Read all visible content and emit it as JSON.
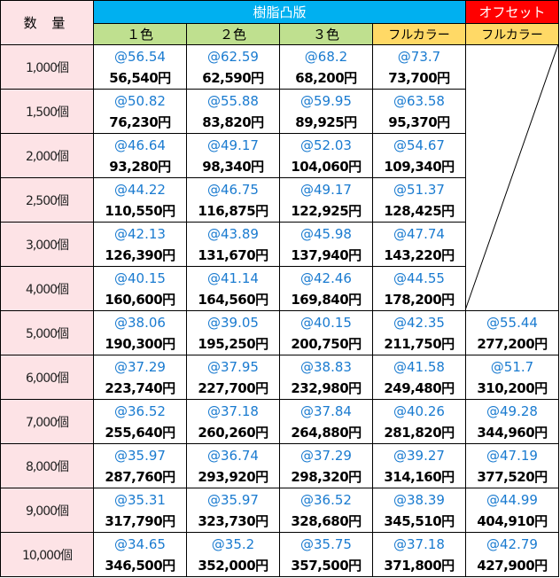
{
  "header": {
    "quantity_label": "数 量",
    "group_resin": "樹脂凸版",
    "group_offset": "オフセット",
    "columns": [
      "１色",
      "２色",
      "３色",
      "フルカラー",
      "フルカラー"
    ]
  },
  "colors": {
    "resin_header": "#00B0F0",
    "offset_header": "#FF0000",
    "color_cols": "#BFE08F",
    "fullcolor_cols": "#FFD966",
    "quantity_bg": "#FDE3E6",
    "unit_price_text": "#1A7BD0"
  },
  "rows": [
    {
      "qty": "1,000個",
      "cells": [
        [
          "@56.54",
          "56,540円"
        ],
        [
          "@62.59",
          "62,590円"
        ],
        [
          "@68.2",
          "68,200円"
        ],
        [
          "@73.7",
          "73,700円"
        ],
        null
      ]
    },
    {
      "qty": "1,500個",
      "cells": [
        [
          "@50.82",
          "76,230円"
        ],
        [
          "@55.88",
          "83,820円"
        ],
        [
          "@59.95",
          "89,925円"
        ],
        [
          "@63.58",
          "95,370円"
        ],
        null
      ]
    },
    {
      "qty": "2,000個",
      "cells": [
        [
          "@46.64",
          "93,280円"
        ],
        [
          "@49.17",
          "98,340円"
        ],
        [
          "@52.03",
          "104,060円"
        ],
        [
          "@54.67",
          "109,340円"
        ],
        null
      ]
    },
    {
      "qty": "2,500個",
      "cells": [
        [
          "@44.22",
          "110,550円"
        ],
        [
          "@46.75",
          "116,875円"
        ],
        [
          "@49.17",
          "122,925円"
        ],
        [
          "@51.37",
          "128,425円"
        ],
        null
      ]
    },
    {
      "qty": "3,000個",
      "cells": [
        [
          "@42.13",
          "126,390円"
        ],
        [
          "@43.89",
          "131,670円"
        ],
        [
          "@45.98",
          "137,940円"
        ],
        [
          "@47.74",
          "143,220円"
        ],
        null
      ]
    },
    {
      "qty": "4,000個",
      "cells": [
        [
          "@40.15",
          "160,600円"
        ],
        [
          "@41.14",
          "164,560円"
        ],
        [
          "@42.46",
          "169,840円"
        ],
        [
          "@44.55",
          "178,200円"
        ],
        null
      ]
    },
    {
      "qty": "5,000個",
      "cells": [
        [
          "@38.06",
          "190,300円"
        ],
        [
          "@39.05",
          "195,250円"
        ],
        [
          "@40.15",
          "200,750円"
        ],
        [
          "@42.35",
          "211,750円"
        ],
        [
          "@55.44",
          "277,200円"
        ]
      ]
    },
    {
      "qty": "6,000個",
      "cells": [
        [
          "@37.29",
          "223,740円"
        ],
        [
          "@37.95",
          "227,700円"
        ],
        [
          "@38.83",
          "232,980円"
        ],
        [
          "@41.58",
          "249,480円"
        ],
        [
          "@51.7",
          "310,200円"
        ]
      ]
    },
    {
      "qty": "7,000個",
      "cells": [
        [
          "@36.52",
          "255,640円"
        ],
        [
          "@37.18",
          "260,260円"
        ],
        [
          "@37.84",
          "264,880円"
        ],
        [
          "@40.26",
          "281,820円"
        ],
        [
          "@49.28",
          "344,960円"
        ]
      ]
    },
    {
      "qty": "8,000個",
      "cells": [
        [
          "@35.97",
          "287,760円"
        ],
        [
          "@36.74",
          "293,920円"
        ],
        [
          "@37.29",
          "298,320円"
        ],
        [
          "@39.27",
          "314,160円"
        ],
        [
          "@47.19",
          "377,520円"
        ]
      ]
    },
    {
      "qty": "9,000個",
      "cells": [
        [
          "@35.31",
          "317,790円"
        ],
        [
          "@35.97",
          "323,730円"
        ],
        [
          "@36.52",
          "328,680円"
        ],
        [
          "@38.39",
          "345,510円"
        ],
        [
          "@44.99",
          "404,910円"
        ]
      ]
    },
    {
      "qty": "10,000個",
      "cells": [
        [
          "@34.65",
          "346,500円"
        ],
        [
          "@35.2",
          "352,000円"
        ],
        [
          "@35.75",
          "357,500円"
        ],
        [
          "@37.18",
          "371,800円"
        ],
        [
          "@42.79",
          "427,900円"
        ]
      ]
    }
  ]
}
